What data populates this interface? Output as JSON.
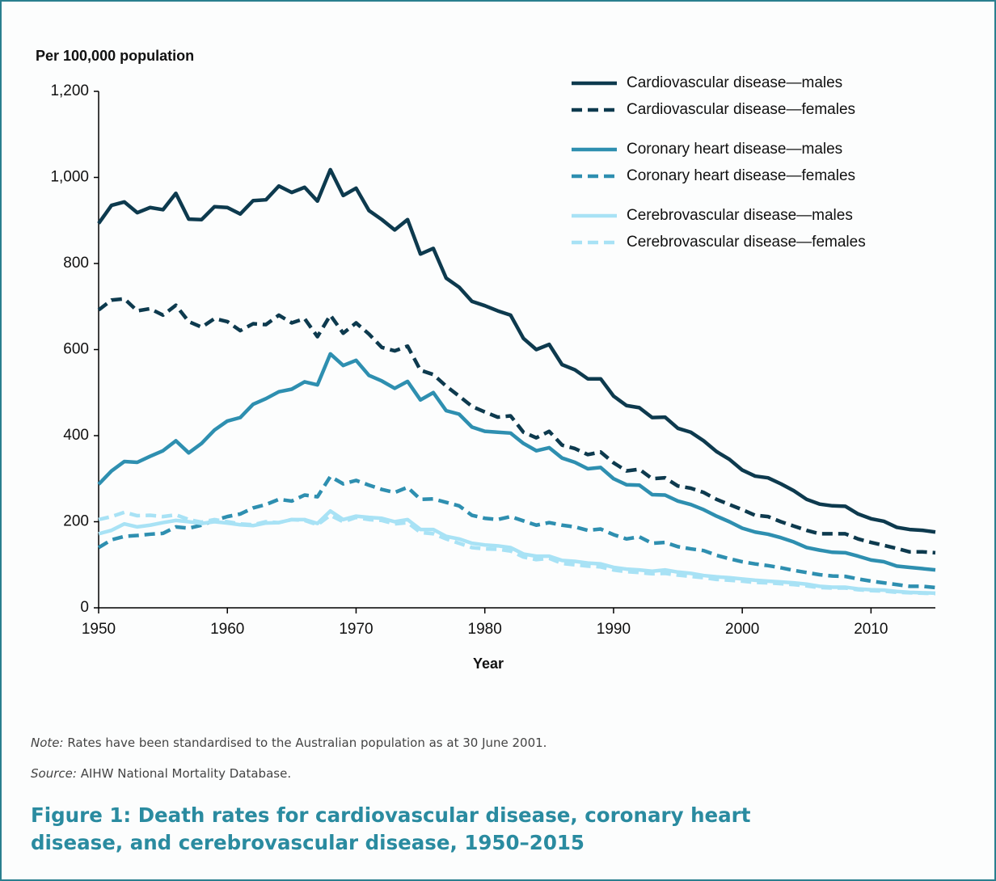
{
  "chart_data": {
    "type": "line",
    "y_axis_label": "Per 100,000 population",
    "x_axis_label": "Year",
    "x": [
      1950,
      1951,
      1952,
      1953,
      1954,
      1955,
      1956,
      1957,
      1958,
      1959,
      1960,
      1961,
      1962,
      1963,
      1964,
      1965,
      1966,
      1967,
      1968,
      1969,
      1970,
      1971,
      1972,
      1973,
      1974,
      1975,
      1976,
      1977,
      1978,
      1979,
      1980,
      1981,
      1982,
      1983,
      1984,
      1985,
      1986,
      1987,
      1988,
      1989,
      1990,
      1991,
      1992,
      1993,
      1994,
      1995,
      1996,
      1997,
      1998,
      1999,
      2000,
      2001,
      2002,
      2003,
      2004,
      2005,
      2006,
      2007,
      2008,
      2009,
      2010,
      2011,
      2012,
      2013,
      2014,
      2015
    ],
    "xlim": [
      1950,
      2015
    ],
    "xticks": [
      1950,
      1960,
      1970,
      1980,
      1990,
      2000,
      2010
    ],
    "ylim": [
      0,
      1200
    ],
    "yticks": [
      0,
      200,
      400,
      600,
      800,
      {
        "value": 1000,
        "label": "1,000"
      },
      {
        "value": 1200,
        "label": "1,200"
      }
    ],
    "grid": false,
    "legend": "top-right",
    "series": [
      {
        "name": "Cardiovascular disease—males",
        "color": "#0d3a4e",
        "dashed": false,
        "values": [
          893,
          935,
          943,
          918,
          930,
          925,
          963,
          903,
          902,
          932,
          930,
          915,
          946,
          948,
          980,
          965,
          977,
          945,
          1018,
          958,
          975,
          923,
          902,
          878,
          902,
          822,
          835,
          766,
          745,
          712,
          702,
          690,
          680,
          626,
          600,
          612,
          565,
          553,
          532,
          532,
          492,
          470,
          465,
          442,
          443,
          417,
          408,
          388,
          363,
          345,
          320,
          306,
          302,
          288,
          272,
          252,
          241,
          237,
          236,
          218,
          207,
          201,
          187,
          182,
          180,
          176
        ]
      },
      {
        "name": "Cardiovascular disease—females",
        "color": "#0d3a4e",
        "dashed": true,
        "values": [
          692,
          715,
          718,
          690,
          695,
          680,
          703,
          665,
          652,
          672,
          665,
          644,
          660,
          658,
          680,
          662,
          672,
          630,
          680,
          638,
          662,
          636,
          605,
          597,
          608,
          552,
          542,
          515,
          492,
          468,
          455,
          443,
          446,
          408,
          395,
          410,
          378,
          370,
          356,
          362,
          337,
          318,
          322,
          300,
          302,
          283,
          278,
          268,
          252,
          240,
          228,
          215,
          212,
          200,
          190,
          180,
          172,
          172,
          172,
          160,
          152,
          145,
          138,
          130,
          130,
          128
        ]
      },
      {
        "name": "Coronary heart disease—males",
        "color": "#2e8fb0",
        "dashed": false,
        "values": [
          287,
          318,
          340,
          338,
          352,
          365,
          388,
          360,
          382,
          413,
          434,
          442,
          473,
          486,
          502,
          508,
          525,
          518,
          590,
          563,
          575,
          540,
          527,
          510,
          526,
          483,
          500,
          458,
          450,
          420,
          410,
          408,
          406,
          382,
          365,
          372,
          348,
          338,
          323,
          326,
          300,
          286,
          285,
          263,
          262,
          248,
          240,
          228,
          213,
          200,
          185,
          176,
          171,
          163,
          153,
          140,
          134,
          129,
          128,
          120,
          111,
          107,
          97,
          94,
          91,
          88
        ]
      },
      {
        "name": "Coronary heart disease—females",
        "color": "#2e8fb0",
        "dashed": true,
        "values": [
          140,
          158,
          166,
          168,
          171,
          173,
          188,
          185,
          192,
          203,
          212,
          218,
          232,
          240,
          252,
          248,
          262,
          258,
          305,
          288,
          296,
          285,
          275,
          268,
          280,
          252,
          253,
          245,
          237,
          215,
          208,
          205,
          212,
          202,
          192,
          198,
          192,
          188,
          180,
          183,
          170,
          160,
          165,
          150,
          152,
          142,
          137,
          133,
          122,
          114,
          107,
          102,
          98,
          93,
          87,
          82,
          77,
          74,
          73,
          67,
          62,
          58,
          54,
          50,
          50,
          47
        ]
      },
      {
        "name": "Cerebrovascular disease—males",
        "color": "#a8e2f5",
        "dashed": false,
        "values": [
          172,
          180,
          195,
          188,
          192,
          198,
          203,
          200,
          196,
          200,
          197,
          193,
          191,
          197,
          198,
          205,
          205,
          196,
          225,
          205,
          213,
          210,
          208,
          200,
          205,
          182,
          182,
          166,
          160,
          150,
          146,
          144,
          140,
          125,
          120,
          120,
          110,
          108,
          104,
          102,
          94,
          90,
          88,
          85,
          88,
          83,
          80,
          75,
          72,
          70,
          67,
          64,
          62,
          60,
          58,
          55,
          50,
          48,
          48,
          44,
          42,
          41,
          38,
          36,
          35,
          34
        ]
      },
      {
        "name": "Cerebrovascular disease—females",
        "color": "#a8e2f5",
        "dashed": true,
        "values": [
          205,
          212,
          222,
          214,
          215,
          212,
          216,
          205,
          199,
          205,
          200,
          195,
          193,
          200,
          198,
          205,
          203,
          193,
          215,
          200,
          210,
          205,
          203,
          195,
          198,
          175,
          172,
          160,
          150,
          140,
          137,
          136,
          132,
          118,
          112,
          115,
          103,
          100,
          97,
          95,
          88,
          84,
          82,
          79,
          80,
          76,
          73,
          70,
          66,
          64,
          62,
          59,
          58,
          56,
          54,
          51,
          47,
          46,
          46,
          42,
          40,
          39,
          36,
          35,
          34,
          33
        ]
      }
    ]
  },
  "note": {
    "label": "Note:",
    "text": "Rates have been standardised to the Australian population as at 30 June 2001."
  },
  "source": {
    "label": "Source:",
    "text": "AIHW National Mortality Database."
  },
  "caption": "Figure 1: Death rates for cardiovascular disease, coronary heart disease, and cerebrovascular disease, 1950–2015"
}
